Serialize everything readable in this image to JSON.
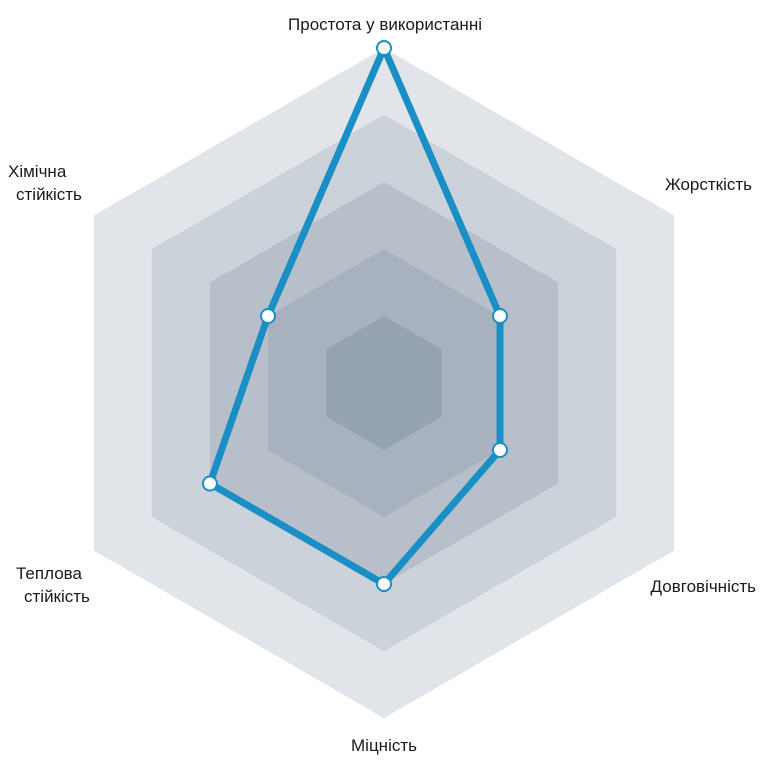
{
  "chart_data": {
    "type": "radar",
    "axes": [
      {
        "label_lines": [
          "Простота у використанні"
        ],
        "value": 1.0
      },
      {
        "label_lines": [
          "Жорсткість"
        ],
        "value": 0.4
      },
      {
        "label_lines": [
          "Довговічність"
        ],
        "value": 0.4
      },
      {
        "label_lines": [
          "Міцність"
        ],
        "value": 0.6
      },
      {
        "label_lines": [
          "Теплова",
          "стійкість"
        ],
        "value": 0.6
      },
      {
        "label_lines": [
          "Хімічна",
          "стійкість"
        ],
        "value": 0.4
      }
    ],
    "rings": 5,
    "range": [
      0,
      1
    ],
    "colors": {
      "series": "#1a8fc5",
      "marker_fill": "#ffffff",
      "ring_fills": [
        "#e1e4e9",
        "#ccd2da",
        "#b7c0ca",
        "#a7b2be",
        "#95a3b1"
      ]
    }
  }
}
